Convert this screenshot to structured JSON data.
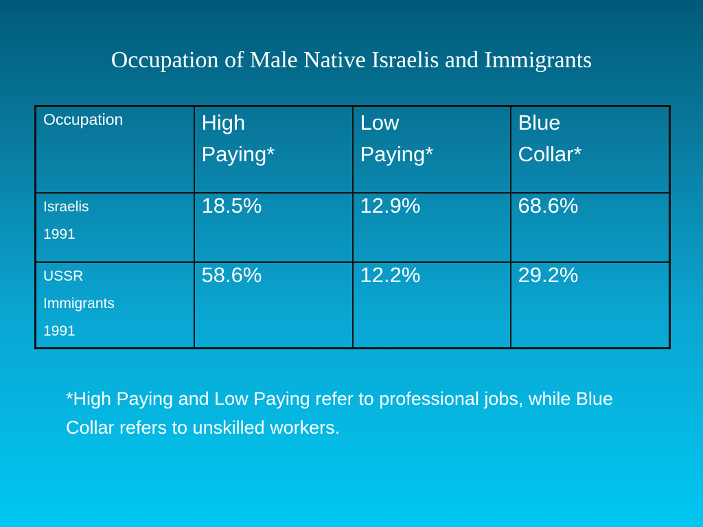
{
  "slide": {
    "title": "Occupation of Male Native Israelis and Immigrants",
    "footnote": "*High Paying and Low Paying refer to professional jobs, while Blue Collar refers to unskilled workers."
  },
  "table": {
    "header": {
      "label": "Occupation",
      "columns": [
        [
          "High",
          "Paying*"
        ],
        [
          "Low",
          "Paying*"
        ],
        [
          "Blue",
          "Collar*"
        ]
      ]
    },
    "rows": [
      {
        "label_lines": [
          "Israelis",
          "1991"
        ],
        "values": [
          "18.5%",
          "12.9%",
          "68.6%"
        ]
      },
      {
        "label_lines": [
          "USSR",
          "Immigrants",
          "1991"
        ],
        "values": [
          "58.6%",
          "12.2%",
          "29.2%"
        ]
      }
    ]
  },
  "colors": {
    "background_top": "#005a78",
    "background_bottom": "#00c7f2",
    "text": "#ffffff",
    "grid": "#101010"
  }
}
